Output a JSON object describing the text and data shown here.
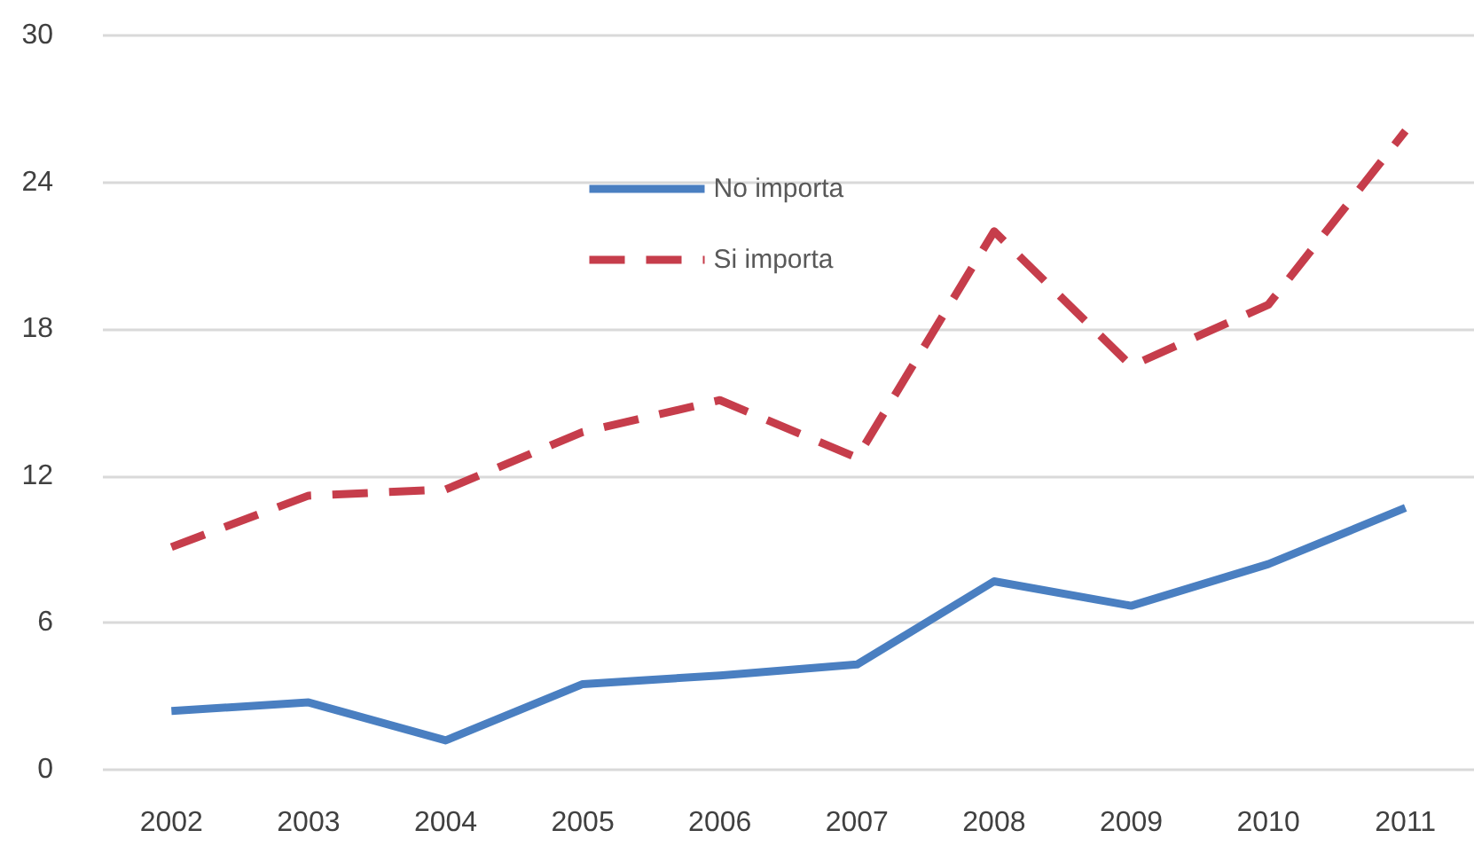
{
  "chart_data": {
    "type": "line",
    "categories": [
      "2002",
      "2003",
      "2004",
      "2005",
      "2006",
      "2007",
      "2008",
      "2009",
      "2010",
      "2011"
    ],
    "series": [
      {
        "name": "No importa",
        "color": "#4a7fc1",
        "line_style": "solid",
        "values": [
          2.4,
          2.75,
          1.2,
          3.5,
          3.85,
          4.3,
          7.7,
          6.7,
          8.4,
          10.7
        ]
      },
      {
        "name": "Si importa",
        "color": "#c63d4b",
        "line_style": "dashed",
        "values": [
          9.1,
          11.2,
          11.45,
          13.8,
          15.1,
          12.75,
          22.0,
          16.5,
          19.0,
          26.1
        ]
      }
    ],
    "ylim": [
      0,
      30
    ],
    "yticks": [
      0,
      6,
      12,
      18,
      24,
      30
    ],
    "grid": "y",
    "legend": "top",
    "marker": "none"
  }
}
